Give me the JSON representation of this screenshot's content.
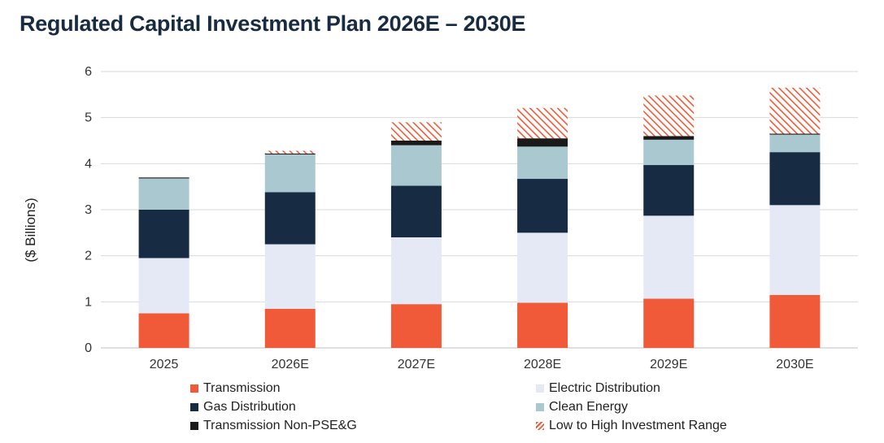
{
  "title": "Regulated Capital Investment Plan 2026E – 2030E",
  "chart_data": {
    "type": "bar",
    "stacked": true,
    "ylabel": "($ Billions)",
    "ylim": [
      0,
      6
    ],
    "yticks": [
      0,
      1,
      2,
      3,
      4,
      5,
      6
    ],
    "grid": true,
    "legend_position": "bottom",
    "categories": [
      "2025",
      "2026E",
      "2027E",
      "2028E",
      "2029E",
      "2030E"
    ],
    "series": [
      {
        "name": "Transmission",
        "color": "#F05A38",
        "pattern": "solid",
        "values": [
          0.75,
          0.85,
          0.95,
          0.98,
          1.07,
          1.15
        ]
      },
      {
        "name": "Electric Distribution",
        "color": "#E4E9F5",
        "pattern": "solid",
        "values": [
          1.2,
          1.4,
          1.45,
          1.52,
          1.8,
          1.95
        ]
      },
      {
        "name": "Gas Distribution",
        "color": "#172B42",
        "pattern": "solid",
        "values": [
          1.05,
          1.13,
          1.12,
          1.17,
          1.1,
          1.15
        ]
      },
      {
        "name": "Clean Energy",
        "color": "#A9C8CF",
        "pattern": "solid",
        "values": [
          0.68,
          0.82,
          0.88,
          0.7,
          0.55,
          0.38
        ]
      },
      {
        "name": "Transmission Non-PSE&G",
        "color": "#1A1A1A",
        "pattern": "solid",
        "values": [
          0.02,
          0.02,
          0.1,
          0.18,
          0.08,
          0.02
        ]
      },
      {
        "name": "Low to High Investment Range",
        "color": "#F05A38",
        "pattern": "hatch",
        "values": [
          0.0,
          0.06,
          0.4,
          0.66,
          0.88,
          1.0
        ]
      }
    ]
  }
}
